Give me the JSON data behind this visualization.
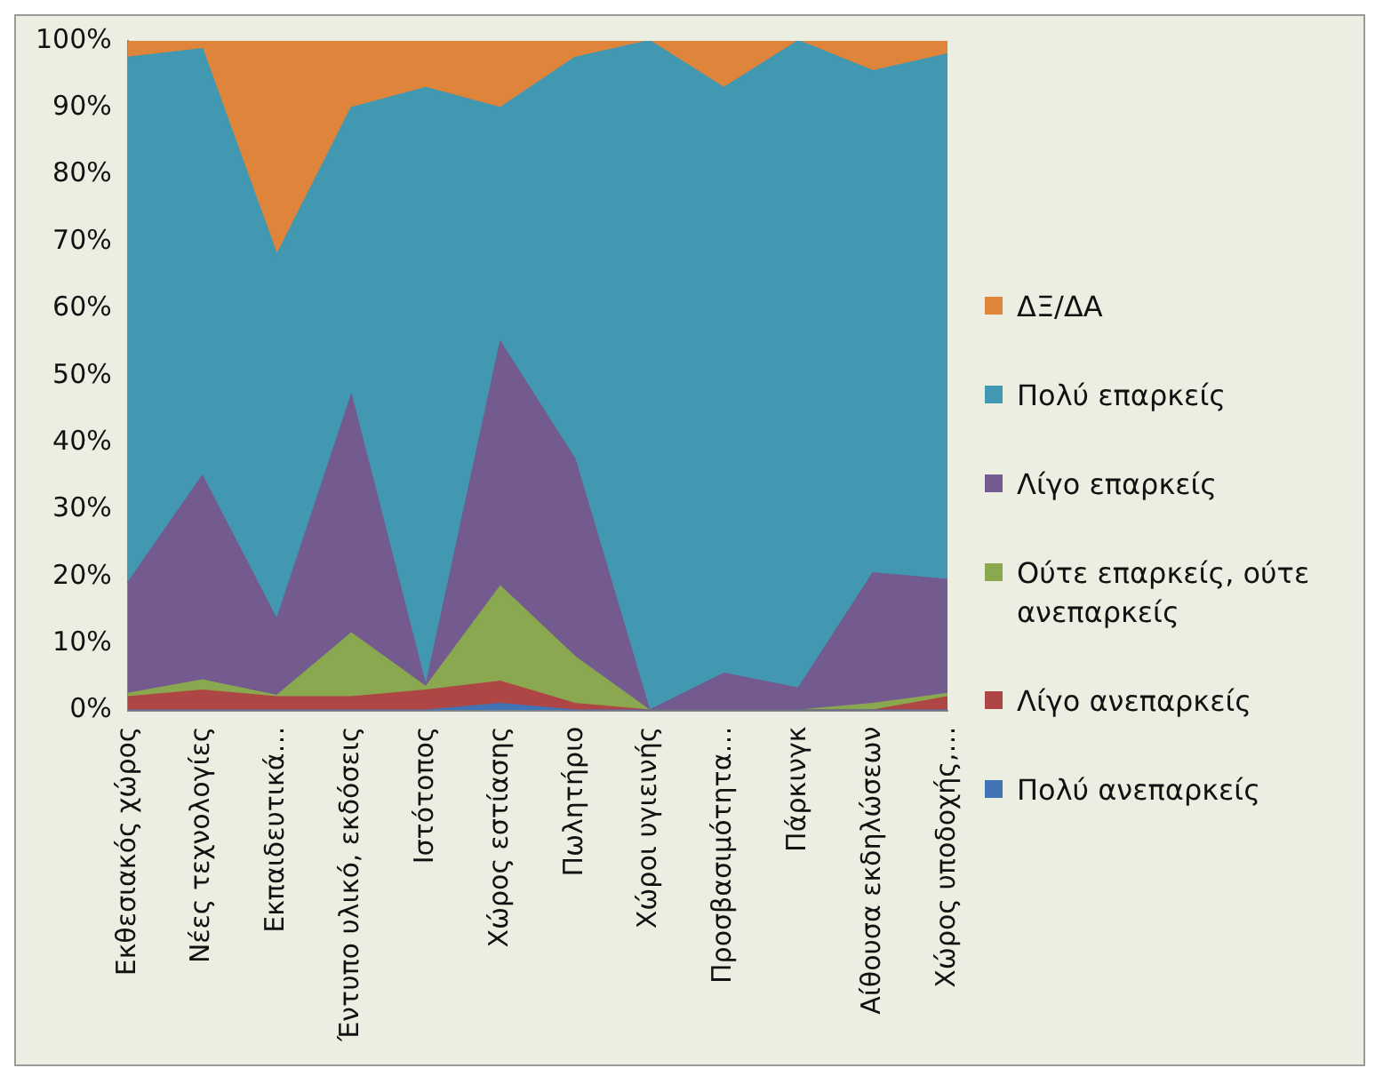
{
  "chart_data": {
    "type": "area",
    "stacked": true,
    "categories": [
      "Εκθεσιακός χώρος",
      "Νέες τεχνολογίες",
      "Εκπαιδευτικά…",
      "Έντυπο υλικό, εκδόσεις",
      "Ιστότοπος",
      "Χώρος εστίασης",
      "Πωλητήριο",
      "Χώροι υγιεινής",
      "Προσβασιμότητα…",
      "Πάρκινγκ",
      "Αίθουσα εκδηλώσεων",
      "Χώρος υποδοχής,…"
    ],
    "series": [
      {
        "name": "Πολύ ανεπαρκείς",
        "color": "#4273b5",
        "values": [
          0,
          0,
          0,
          0,
          0,
          1,
          0,
          0,
          0,
          0,
          0,
          0
        ]
      },
      {
        "name": "Λίγο ανεπαρκείς",
        "color": "#ad4644",
        "values": [
          2,
          3,
          2,
          2,
          3,
          3.3,
          1,
          0,
          0,
          0,
          0,
          2
        ]
      },
      {
        "name": "Ούτε επαρκείς, ούτε ανεπαρκείς",
        "color": "#8aa84f",
        "values": [
          0.5,
          1.5,
          0.2,
          9.5,
          0.5,
          14.2,
          7,
          0,
          0,
          0,
          1,
          0.5
        ]
      },
      {
        "name": "Λίγο επαρκείς",
        "color": "#735a8f",
        "values": [
          16.5,
          30.5,
          11.3,
          35.5,
          0,
          36.5,
          29.5,
          0,
          5.5,
          3.3,
          19.5,
          17
        ]
      },
      {
        "name": "Πολύ επαρκείς",
        "color": "#4298b0",
        "values": [
          78.5,
          63.8,
          54.5,
          43,
          89.5,
          35,
          60,
          100,
          87.5,
          96.7,
          75,
          78.5
        ]
      },
      {
        "name": "ΔΞ/ΔΑ",
        "color": "#de843b",
        "values": [
          2.5,
          1.2,
          32,
          10,
          7,
          10,
          2.5,
          0,
          7,
          0,
          4.5,
          2
        ]
      }
    ],
    "ylim": [
      0,
      100
    ],
    "yticks": [
      {
        "value": 0,
        "label": "0%"
      },
      {
        "value": 10,
        "label": "10%"
      },
      {
        "value": 20,
        "label": "20%"
      },
      {
        "value": 30,
        "label": "30%"
      },
      {
        "value": 40,
        "label": "40%"
      },
      {
        "value": 50,
        "label": "50%"
      },
      {
        "value": 60,
        "label": "60%"
      },
      {
        "value": 70,
        "label": "70%"
      },
      {
        "value": 80,
        "label": "80%"
      },
      {
        "value": 90,
        "label": "90%"
      },
      {
        "value": 100,
        "label": "100%"
      }
    ],
    "grid": false,
    "legend": "right"
  }
}
